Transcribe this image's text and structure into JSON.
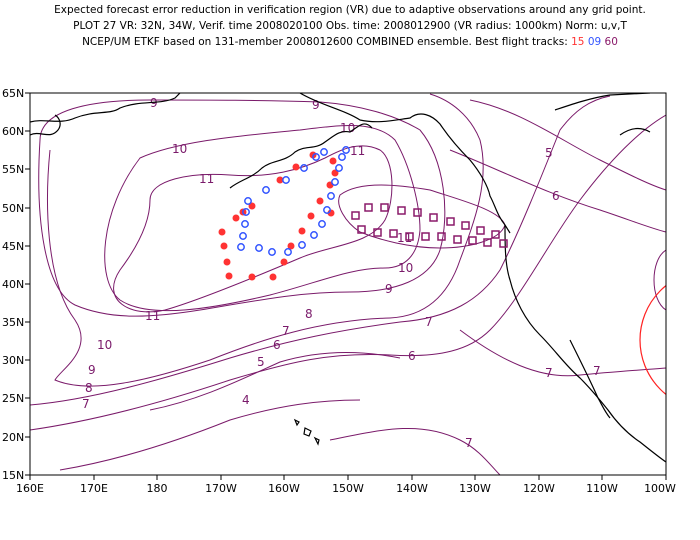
{
  "title": {
    "line1": "Expected forecast error reduction in verification region (VR) due to adaptive observations around any grid point.",
    "line2": "PLOT 27 VR: 32N, 34W, Verif. time 2008020100 Obs. time: 2008012900 (VR radius: 1000km) Norm: u,v,T",
    "line3_prefix": "NCEP/UM ETKF based on 131-member 2008012600 COMBINED ensemble.  Best flight tracks:",
    "track_a": "15",
    "track_b": "09",
    "track_c": "60"
  },
  "axes": {
    "lat_labels": [
      "65N",
      "60N",
      "55N",
      "50N",
      "45N",
      "40N",
      "35N",
      "30N",
      "25N",
      "20N",
      "15N"
    ],
    "lon_labels": [
      "160E",
      "170E",
      "180",
      "170W",
      "160W",
      "150W",
      "140W",
      "130W",
      "120W",
      "110W",
      "100W"
    ]
  },
  "colors": {
    "contour": "#7a1a6a",
    "track_15": "#ff3333",
    "track_09": "#3355ff",
    "track_60": "#8a1a6a",
    "verification_circle": "#ff2222"
  },
  "contours": [
    {
      "value": "9",
      "label_at": "158W-60N"
    },
    {
      "value": "9",
      "label_at": "155W-60N"
    },
    {
      "value": "10",
      "label_at": "170W-52N"
    },
    {
      "value": "10",
      "label_at": "150W-58N"
    },
    {
      "value": "11",
      "label_at": "166W-51N"
    },
    {
      "value": "11",
      "label_at": "148W-55N"
    },
    {
      "value": "11",
      "label_at": "143W-45N"
    },
    {
      "value": "10",
      "label_at": "139W-40N"
    },
    {
      "value": "9",
      "label_at": "141W-36N"
    },
    {
      "value": "8",
      "label_at": "155W-32N"
    },
    {
      "value": "7",
      "label_at": "139W-29N"
    },
    {
      "value": "11",
      "label_at": "176E-33N"
    },
    {
      "value": "10",
      "label_at": "172E-29N"
    },
    {
      "value": "9",
      "label_at": "169E-27N"
    },
    {
      "value": "8",
      "label_at": "168E-26N"
    },
    {
      "value": "7",
      "label_at": "167E-24N"
    },
    {
      "value": "7",
      "label_at": "157W-31N"
    },
    {
      "value": "6",
      "label_at": "158W-30N"
    },
    {
      "value": "5",
      "label_at": "163W-27N"
    },
    {
      "value": "6",
      "label_at": "140W-27N"
    },
    {
      "value": "4",
      "label_at": "172W-20N"
    },
    {
      "value": "5",
      "label_at": "125W-50N"
    },
    {
      "value": "6",
      "label_at": "122W-46N"
    },
    {
      "value": "7",
      "label_at": "122W-28N"
    },
    {
      "value": "7",
      "label_at": "108W-27N"
    },
    {
      "value": "7",
      "label_at": "129W-18N"
    }
  ]
}
